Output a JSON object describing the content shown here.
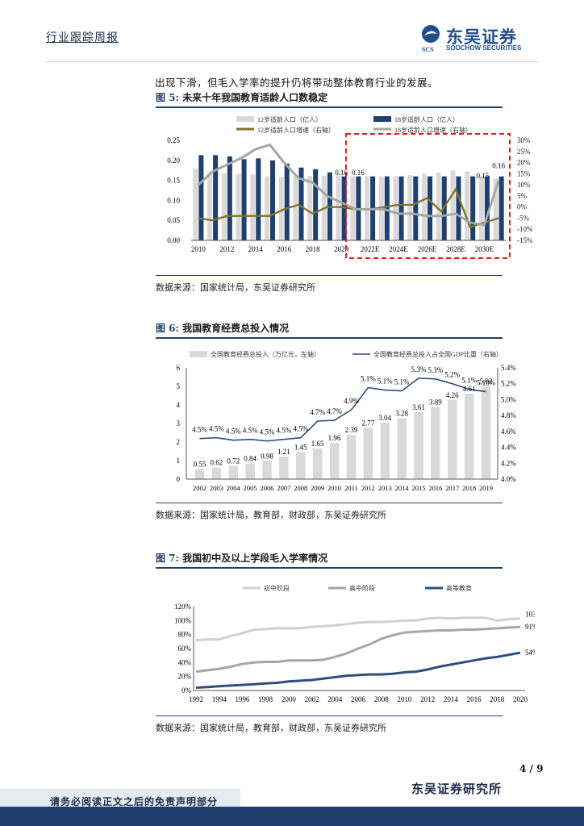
{
  "header": {
    "title": "行业跟踪周报",
    "logo_cn": "东吴证券",
    "logo_en": "SOOCHOW SECURITIES",
    "logo_mark": "SCS"
  },
  "intro_text": "出现下滑，但毛入学率的提升仍将带动整体教育行业的发展。",
  "figure5": {
    "label": "图 5:",
    "title": "未来十年我国教育适龄人口数稳定",
    "source": "数据来源：国家统计局，东吴证券研究所",
    "chart_data": {
      "type": "bar",
      "legend": [
        "12岁适龄人口（亿人）",
        "18岁适龄人口（亿人）",
        "12岁适龄人口增速（右轴）",
        "18岁适龄人口增速（右轴）"
      ],
      "x_tick_labels": [
        "2010",
        "2012",
        "2014",
        "2016",
        "2018",
        "2020",
        "2022E",
        "2024E",
        "2026E",
        "2028E",
        "2030E"
      ],
      "years": [
        2010,
        2011,
        2012,
        2013,
        2014,
        2015,
        2016,
        2017,
        2018,
        2019,
        2020,
        2021,
        2022,
        2023,
        2024,
        2025,
        2026,
        2027,
        2028,
        2029,
        2030,
        2031
      ],
      "series": [
        {
          "name": "12岁适龄人口（亿人）",
          "color": "#d9d9d9",
          "values": [
            0.18,
            0.172,
            0.168,
            0.167,
            0.165,
            0.16,
            0.158,
            0.16,
            0.162,
            0.162,
            0.163,
            0.16,
            0.161,
            0.16,
            0.16,
            0.163,
            0.167,
            0.17,
            0.175,
            0.172,
            0.16,
            0.155
          ]
        },
        {
          "name": "18岁适龄人口（亿人）",
          "color": "#1f3f6e",
          "values": [
            0.213,
            0.213,
            0.21,
            0.203,
            0.205,
            0.2,
            0.192,
            0.182,
            0.178,
            0.17,
            0.16,
            0.16,
            0.16,
            0.16,
            0.16,
            0.16,
            0.16,
            0.16,
            0.16,
            0.16,
            0.16,
            0.16
          ]
        },
        {
          "name": "12岁适龄人口增速（右轴）",
          "color": "#7f7330",
          "values": [
            -5,
            -6,
            -4,
            -4,
            -4,
            -4,
            -1,
            1,
            -3,
            0,
            0,
            -1,
            -1,
            0,
            1,
            1,
            4,
            -2,
            8,
            -9,
            -7,
            -5
          ]
        },
        {
          "name": "18岁适龄人口增速（右轴）",
          "color": "#a6a6a6",
          "values": [
            10,
            16,
            19,
            22,
            26,
            28,
            20,
            13,
            11,
            5,
            2,
            -1,
            -1,
            -1,
            -3,
            -3,
            -4,
            -4,
            -3,
            -7,
            -8,
            12
          ]
        }
      ],
      "data_labels": [
        "0.16",
        "0.16",
        "0.16",
        "0.15",
        "0.16"
      ],
      "y_left_ticks": [
        "0.00",
        "0.05",
        "0.10",
        "0.15",
        "0.20",
        "0.25"
      ],
      "y_right_ticks": [
        "-15%",
        "-10%",
        "-5%",
        "0%",
        "5%",
        "10%",
        "15%",
        "20%",
        "25%",
        "30%"
      ],
      "ylim_left": [
        0,
        0.25
      ],
      "ylim_right": [
        -15,
        30
      ],
      "highlight_range": [
        "2021",
        "2031"
      ]
    }
  },
  "figure6": {
    "label": "图 6:",
    "title": "我国教育经费总投入情况",
    "source": "数据来源：国家统计局，教育部，财政部，东吴证券研究所",
    "chart_data": {
      "type": "bar",
      "legend": [
        "全国教育经费总投入（万亿元，左轴）",
        "全国教育经费总投入占全国GDP比重（右轴）"
      ],
      "categories": [
        "2002",
        "2003",
        "2004",
        "2005",
        "2006",
        "2007",
        "2008",
        "2009",
        "2010",
        "2011",
        "2012",
        "2013",
        "2014",
        "2015",
        "2016",
        "2017",
        "2018",
        "2019"
      ],
      "series": [
        {
          "name": "全国教育经费总投入（万亿元，左轴）",
          "color": "#d9d9d9",
          "values": [
            0.55,
            0.62,
            0.72,
            0.84,
            0.98,
            1.21,
            1.45,
            1.65,
            1.96,
            2.39,
            2.77,
            3.04,
            3.28,
            3.61,
            3.89,
            4.26,
            4.61,
            5.02
          ],
          "labels": [
            "0.55",
            "0.62",
            "0.72",
            "0.84",
            "0.98",
            "1.21",
            "1.45",
            "1.65",
            "1.96",
            "2.39",
            "2.77",
            "3.04",
            "3.28",
            "3.61",
            "3.89",
            "4.26",
            "4.61",
            "5.02"
          ]
        },
        {
          "name": "全国教育经费总投入占全国GDP比重（右轴）",
          "color": "#2f4f7f",
          "values": [
            4.5,
            4.5,
            4.5,
            4.5,
            4.5,
            4.5,
            4.5,
            4.7,
            4.7,
            4.9,
            5.1,
            5.1,
            5.1,
            5.3,
            5.3,
            5.2,
            5.1,
            5.1
          ],
          "labels": [
            "4.5%",
            "4.5%",
            "4.5%",
            "4.5%",
            "4.5%",
            "4.5%",
            "4.5%",
            "4.7%",
            "4.7%",
            "4.9%",
            "5.1%",
            "5.1%",
            "5.1%",
            "5.3%",
            "5.3%",
            "5.2%",
            "5.1%",
            "5.10%"
          ]
        }
      ],
      "y_left_ticks": [
        "0",
        "1",
        "2",
        "3",
        "4",
        "5",
        "6"
      ],
      "y_right_ticks": [
        "4.0%",
        "4.2%",
        "4.4%",
        "4.6%",
        "4.8%",
        "5.0%",
        "5.2%",
        "5.4%"
      ],
      "ylim_left": [
        0,
        6
      ],
      "ylim_right": [
        4.0,
        5.4
      ]
    }
  },
  "figure7": {
    "label": "图 7:",
    "title": "我国初中及以上学段毛入学率情况",
    "source": "数据来源：国家统计局，教育部，财政部，东吴证券研究所",
    "chart_data": {
      "type": "line",
      "legend": [
        "初中阶段",
        "高中阶段",
        "高等教育"
      ],
      "x_tick_labels": [
        "1992",
        "1994",
        "1996",
        "1998",
        "2000",
        "2002",
        "2004",
        "2006",
        "2008",
        "2010",
        "2012",
        "2014",
        "2016",
        "2018",
        "2020"
      ],
      "years": [
        1992,
        1993,
        1994,
        1995,
        1996,
        1997,
        1998,
        1999,
        2000,
        2001,
        2002,
        2003,
        2004,
        2005,
        2006,
        2007,
        2008,
        2009,
        2010,
        2011,
        2012,
        2013,
        2014,
        2015,
        2016,
        2017,
        2018,
        2019,
        2020
      ],
      "series": [
        {
          "name": "初中阶段",
          "color": "#d0d0d0",
          "values": [
            72,
            73,
            73,
            78,
            82,
            87,
            88,
            89,
            89,
            89,
            91,
            92,
            93,
            95,
            97,
            98,
            98,
            99,
            100,
            100,
            103,
            104,
            103,
            104,
            104,
            104,
            100,
            102,
            103
          ]
        },
        {
          "name": "高中阶段",
          "color": "#a6a6a6",
          "values": [
            27,
            29,
            31,
            34,
            38,
            40,
            41,
            41,
            43,
            43,
            43,
            44,
            48,
            53,
            60,
            66,
            74,
            79,
            83,
            84,
            85,
            86,
            86,
            87,
            87,
            88,
            89,
            90,
            91
          ]
        },
        {
          "name": "高等教育",
          "color": "#2f4f7f",
          "values": [
            4,
            5,
            6,
            7,
            8,
            9,
            10,
            11,
            13,
            14,
            15,
            17,
            19,
            21,
            22,
            23,
            23,
            24,
            26,
            27,
            30,
            34,
            37,
            40,
            43,
            46,
            48,
            51,
            54
          ]
        }
      ],
      "end_labels": [
        "103%",
        "91%",
        "54%"
      ],
      "y_ticks": [
        "0%",
        "20%",
        "40%",
        "60%",
        "80%",
        "100%",
        "120%"
      ],
      "ylim": [
        0,
        120
      ]
    }
  },
  "footer": {
    "page": "4 / 9",
    "org": "东吴证券研究所",
    "disclaimer": "请务必阅读正文之后的免责声明部分"
  }
}
